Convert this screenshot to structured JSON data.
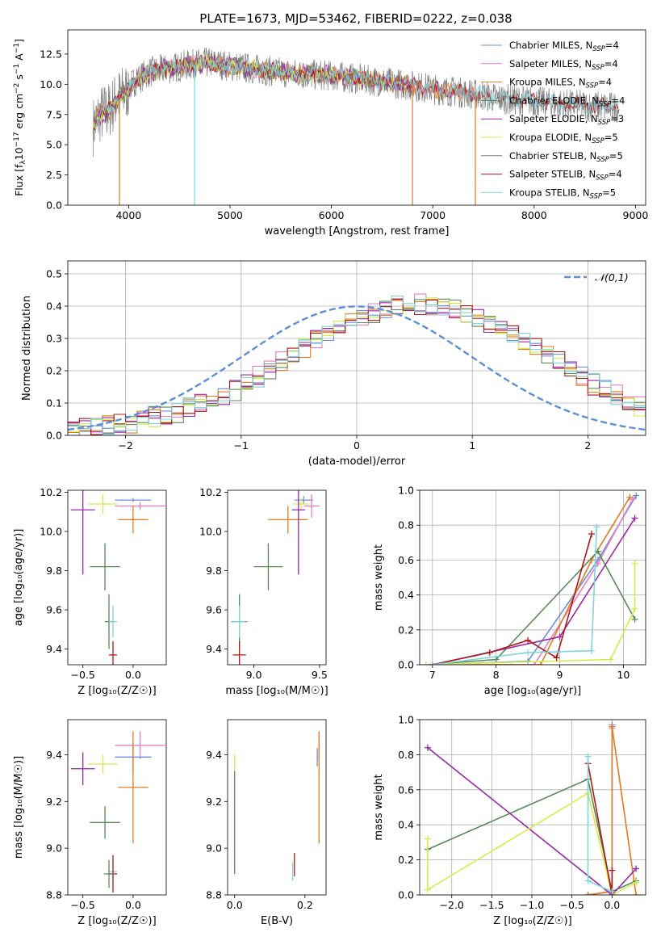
{
  "figure_title": "PLATE=1673, MJD=53462, FIBERID=0222, z=0.038",
  "colors": {
    "Chabrier MILES": "#6a8fd8",
    "Salpeter MILES": "#e67fc4",
    "Kroupa MILES": "#e07b1f",
    "Chabrier ELODIE": "#5a8a5a",
    "Salpeter ELODIE": "#9a27a8",
    "Kroupa ELODIE": "#d4ec4a",
    "Chabrier STELIB": "#808080",
    "Salpeter STELIB": "#b01818",
    "Kroupa STELIB": "#7fd4dc",
    "normal": "#5e8fd6"
  },
  "chart_data": [
    {
      "type": "line",
      "title": "PLATE=1673, MJD=53462, FIBERID=0222, z=0.038",
      "xlabel": "wavelength [Angstrom, rest frame]",
      "ylabel_parts": [
        "Flux [f",
        "λ",
        "10",
        "−17",
        " erg cm",
        "−2",
        " s",
        "−1",
        " A",
        "−1",
        "]"
      ],
      "xlim": [
        3400,
        9100
      ],
      "ylim": [
        0,
        14.5
      ],
      "xticks": [
        4000,
        5000,
        6000,
        7000,
        8000,
        9000
      ],
      "yticks": [
        0.0,
        2.5,
        5.0,
        7.5,
        10.0,
        12.5
      ],
      "grid": false,
      "legend_position": "top-right",
      "legend": [
        {
          "name": "Chabrier MILES",
          "nssp": "4"
        },
        {
          "name": "Salpeter MILES",
          "nssp": "4"
        },
        {
          "name": "Kroupa MILES",
          "nssp": "4"
        },
        {
          "name": "Chabrier ELODIE",
          "nssp": "4"
        },
        {
          "name": "Salpeter ELODIE",
          "nssp": "3"
        },
        {
          "name": "Kroupa ELODIE",
          "nssp": "5"
        },
        {
          "name": "Chabrier STELIB",
          "nssp": "5"
        },
        {
          "name": "Salpeter STELIB",
          "nssp": "4"
        },
        {
          "name": "Kroupa STELIB",
          "nssp": "5"
        }
      ],
      "continuum": [
        [
          3650,
          6.5
        ],
        [
          3720,
          7.5
        ],
        [
          3800,
          7.8
        ],
        [
          3900,
          8.9
        ],
        [
          3990,
          9.5
        ],
        [
          4050,
          10.2
        ],
        [
          4200,
          11.0
        ],
        [
          4400,
          11.3
        ],
        [
          4600,
          11.6
        ],
        [
          4800,
          11.8
        ],
        [
          5000,
          11.5
        ],
        [
          5200,
          11.3
        ],
        [
          5400,
          11.1
        ],
        [
          5600,
          10.9
        ],
        [
          5800,
          10.8
        ],
        [
          6000,
          10.7
        ],
        [
          6200,
          10.5
        ],
        [
          6400,
          10.3
        ],
        [
          6600,
          10.1
        ],
        [
          6800,
          9.9
        ],
        [
          7000,
          9.6
        ],
        [
          7200,
          9.4
        ],
        [
          7400,
          9.2
        ],
        [
          7600,
          8.9
        ],
        [
          7800,
          8.7
        ],
        [
          8000,
          8.6
        ],
        [
          8200,
          8.4
        ],
        [
          8400,
          8.3
        ],
        [
          8600,
          8.2
        ],
        [
          8800,
          8.1
        ]
      ],
      "model_end": {
        "MILES": 7420,
        "ELODIE": 6800,
        "STELIB": 8840
      },
      "spikes": [
        {
          "x": 3910,
          "ymin": 0,
          "series": "Kroupa MILES"
        },
        {
          "x": 4650,
          "ymin": 0,
          "series": "Kroupa STELIB"
        },
        {
          "x": 6800,
          "ymin": 0,
          "series": "Kroupa MILES"
        },
        {
          "x": 7420,
          "ymin": 0,
          "series": "Kroupa MILES"
        }
      ]
    },
    {
      "type": "histogram",
      "xlabel": "(data-model)/error",
      "ylabel": "Normed distribution",
      "xlim": [
        -2.5,
        2.5
      ],
      "ylim": [
        0,
        0.54
      ],
      "xticks": [
        -2,
        -1,
        0,
        1,
        2
      ],
      "yticks": [
        0.0,
        0.1,
        0.2,
        0.3,
        0.4,
        0.5
      ],
      "grid": true,
      "legend_position": "top-right",
      "legend_label": "𝒩(0,1)",
      "bin_width": 0.1,
      "bin_start": -2.5,
      "series_order": [
        "Chabrier MILES",
        "Salpeter MILES",
        "Kroupa MILES",
        "Chabrier ELODIE",
        "Salpeter ELODIE",
        "Kroupa ELODIE",
        "Salpeter STELIB",
        "Kroupa STELIB"
      ],
      "base_values": [
        0.018,
        0.02,
        0.025,
        0.03,
        0.034,
        0.04,
        0.046,
        0.052,
        0.06,
        0.07,
        0.082,
        0.096,
        0.11,
        0.126,
        0.144,
        0.164,
        0.185,
        0.206,
        0.228,
        0.25,
        0.272,
        0.294,
        0.315,
        0.335,
        0.352,
        0.367,
        0.379,
        0.39,
        0.398,
        0.402,
        0.41,
        0.404,
        0.398,
        0.39,
        0.379,
        0.365,
        0.35,
        0.333,
        0.313,
        0.292,
        0.27,
        0.248,
        0.226,
        0.204,
        0.182,
        0.162,
        0.142,
        0.124,
        0.106,
        0.091,
        0.078,
        0.066,
        0.056,
        0.048,
        0.041,
        0.036,
        0.032,
        0.03,
        0.028,
        0.028
      ],
      "offsets": [
        0.012,
        -0.015,
        0.008,
        0.02,
        -0.01,
        0.004,
        -0.018,
        0.015
      ]
    },
    {
      "type": "errorbar",
      "xlabel": "Z [log₁₀(Z/Z☉)]",
      "ylabel": "age  [log₁₀(age/yr)]",
      "xlim": [
        -0.65,
        0.33
      ],
      "ylim": [
        9.32,
        10.21
      ],
      "xticks": [
        -0.5,
        0.0
      ],
      "yticks": [
        9.4,
        9.6,
        9.8,
        10.0,
        10.2
      ],
      "grid": false,
      "points": [
        {
          "series": "Chabrier MILES",
          "x": 0.0,
          "y": 10.16,
          "xerr": 0.18,
          "yerr": 0.01
        },
        {
          "series": "Salpeter MILES",
          "x": 0.07,
          "y": 10.13,
          "xerr": 0.25,
          "yerr": 0.02
        },
        {
          "series": "Kroupa MILES",
          "x": 0.0,
          "y": 10.06,
          "xerr": 0.15,
          "yerr": 0.07
        },
        {
          "series": "Kroupa ELODIE",
          "x": -0.3,
          "y": 10.14,
          "xerr": 0.15,
          "yerr": 0.05
        },
        {
          "series": "Salpeter ELODIE",
          "x": -0.5,
          "y": 10.11,
          "xerr": 0.12,
          "yerr": 0.33
        },
        {
          "series": "Chabrier ELODIE",
          "x": -0.28,
          "y": 9.82,
          "xerr": 0.15,
          "yerr": 0.12
        },
        {
          "series": "Chabrier ELODIE",
          "x": -0.24,
          "y": 9.54,
          "xerr": 0.04,
          "yerr": 0.14
        },
        {
          "series": "Kroupa STELIB",
          "x": -0.2,
          "y": 9.54,
          "xerr": 0.04,
          "yerr": 0.08
        },
        {
          "series": "Salpeter STELIB",
          "x": -0.2,
          "y": 9.37,
          "xerr": 0.04,
          "yerr": 0.07
        }
      ]
    },
    {
      "type": "errorbar",
      "xlabel": "mass [log₁₀(M/M☉)]",
      "ylabel": "",
      "xlim": [
        8.8,
        9.55
      ],
      "ylim": [
        9.32,
        10.21
      ],
      "xticks": [
        9.0,
        9.5
      ],
      "yticks": [
        9.4,
        9.6,
        9.8,
        10.0,
        10.2
      ],
      "grid": false,
      "points": [
        {
          "series": "Chabrier MILES",
          "x": 9.38,
          "y": 10.16,
          "xerr": 0.07,
          "yerr": 0.02
        },
        {
          "series": "Salpeter MILES",
          "x": 9.44,
          "y": 10.13,
          "xerr": 0.06,
          "yerr": 0.06
        },
        {
          "series": "Kroupa MILES",
          "x": 9.26,
          "y": 10.06,
          "xerr": 0.15,
          "yerr": 0.07
        },
        {
          "series": "Kroupa ELODIE",
          "x": 9.36,
          "y": 10.14,
          "xerr": 0.06,
          "yerr": 0.03
        },
        {
          "series": "Salpeter ELODIE",
          "x": 9.34,
          "y": 10.11,
          "xerr": 0.05,
          "yerr": 0.33
        },
        {
          "series": "Chabrier ELODIE",
          "x": 9.11,
          "y": 9.82,
          "xerr": 0.11,
          "yerr": 0.12
        },
        {
          "series": "Chabrier ELODIE",
          "x": 8.89,
          "y": 9.54,
          "xerr": 0.06,
          "yerr": 0.14
        },
        {
          "series": "Kroupa STELIB",
          "x": 8.89,
          "y": 9.54,
          "xerr": 0.05,
          "yerr": 0.08
        },
        {
          "series": "Salpeter STELIB",
          "x": 8.89,
          "y": 9.37,
          "xerr": 0.05,
          "yerr": 0.07
        }
      ]
    },
    {
      "type": "line",
      "xlabel": "age  [log₁₀(age/yr)]",
      "ylabel": "mass weight",
      "xlim": [
        6.8,
        10.35
      ],
      "ylim": [
        0,
        1.0
      ],
      "xticks": [
        7,
        8,
        9,
        10
      ],
      "yticks": [
        0.0,
        0.2,
        0.4,
        0.6,
        0.8,
        1.0
      ],
      "grid": true,
      "series": [
        {
          "name": "Chabrier MILES",
          "x": [
            7.0,
            8.5,
            9.6,
            10.2
          ],
          "y": [
            0.0,
            0.02,
            0.6,
            0.97
          ]
        },
        {
          "name": "Salpeter MILES",
          "x": [
            7.0,
            8.6,
            9.6,
            10.15
          ],
          "y": [
            0.0,
            0.0,
            0.58,
            0.95
          ]
        },
        {
          "name": "Kroupa MILES",
          "x": [
            7.0,
            8.7,
            9.5,
            10.1
          ],
          "y": [
            0.0,
            0.0,
            0.6,
            0.96
          ]
        },
        {
          "name": "Chabrier ELODIE",
          "x": [
            6.9,
            8.0,
            9.6,
            10.18
          ],
          "y": [
            0.0,
            0.03,
            0.65,
            0.26
          ]
        },
        {
          "name": "Salpeter ELODIE",
          "x": [
            7.0,
            9.0,
            10.18
          ],
          "y": [
            0.0,
            0.16,
            0.84
          ]
        },
        {
          "name": "Kroupa ELODIE",
          "x": [
            6.9,
            9.8,
            10.18,
            10.18
          ],
          "y": [
            0.0,
            0.03,
            0.32,
            0.58
          ]
        },
        {
          "name": "Salpeter STELIB",
          "x": [
            7.0,
            7.9,
            8.5,
            8.95,
            9.5
          ],
          "y": [
            0.0,
            0.07,
            0.14,
            0.04,
            0.75
          ]
        },
        {
          "name": "Kroupa STELIB",
          "x": [
            7.0,
            8.5,
            9.5,
            9.58
          ],
          "y": [
            0.0,
            0.07,
            0.08,
            0.79
          ]
        }
      ]
    },
    {
      "type": "errorbar",
      "xlabel": "Z [log₁₀(Z/Z☉)]",
      "ylabel": "mass [log₁₀(M/M☉)]",
      "xlim": [
        -0.65,
        0.33
      ],
      "ylim": [
        8.8,
        9.55
      ],
      "xticks": [
        -0.5,
        0.0
      ],
      "yticks": [
        8.8,
        9.0,
        9.2,
        9.4
      ],
      "grid": false,
      "points": [
        {
          "series": "Salpeter MILES",
          "x": 0.07,
          "y": 9.44,
          "xerr": 0.25,
          "yerr": 0.06
        },
        {
          "series": "Chabrier MILES",
          "x": 0.0,
          "y": 9.39,
          "xerr": 0.18,
          "yerr": 0.06
        },
        {
          "series": "Kroupa ELODIE",
          "x": -0.3,
          "y": 9.36,
          "xerr": 0.15,
          "yerr": 0.04
        },
        {
          "series": "Salpeter ELODIE",
          "x": -0.5,
          "y": 9.34,
          "xerr": 0.12,
          "yerr": 0.07
        },
        {
          "series": "Kroupa MILES",
          "x": 0.0,
          "y": 9.26,
          "xerr": 0.15,
          "yerr": 0.24
        },
        {
          "series": "Chabrier ELODIE",
          "x": -0.28,
          "y": 9.11,
          "xerr": 0.15,
          "yerr": 0.07
        },
        {
          "series": "Kroupa STELIB",
          "x": -0.2,
          "y": 8.9,
          "xerr": 0.04,
          "yerr": 0.04
        },
        {
          "series": "Salpeter STELIB",
          "x": -0.2,
          "y": 8.89,
          "xerr": 0.04,
          "yerr": 0.08
        },
        {
          "series": "Chabrier ELODIE",
          "x": -0.24,
          "y": 8.89,
          "xerr": 0.05,
          "yerr": 0.06
        }
      ]
    },
    {
      "type": "errorbar",
      "xlabel": "E(B-V)",
      "ylabel": "",
      "xlim": [
        -0.02,
        0.26
      ],
      "ylim": [
        8.8,
        9.55
      ],
      "xticks": [
        0.0,
        0.2
      ],
      "yticks": [
        8.8,
        9.0,
        9.2,
        9.4
      ],
      "grid": false,
      "points": [
        {
          "series": "Salpeter MILES",
          "x": 0.24,
          "y": 9.44,
          "xerr": 0.0,
          "yerr": 0.06
        },
        {
          "series": "Chabrier MILES",
          "x": 0.235,
          "y": 9.39,
          "xerr": 0.0,
          "yerr": 0.04
        },
        {
          "series": "Kroupa MILES",
          "x": 0.24,
          "y": 9.26,
          "xerr": 0.0,
          "yerr": 0.24
        },
        {
          "series": "Kroupa ELODIE",
          "x": 0.0,
          "y": 9.36,
          "xerr": 0.0,
          "yerr": 0.04
        },
        {
          "series": "Chabrier ELODIE",
          "x": 0.0,
          "y": 9.11,
          "xerr": 0.0,
          "yerr": 0.22
        },
        {
          "series": "Kroupa STELIB",
          "x": 0.165,
          "y": 8.9,
          "xerr": 0.0,
          "yerr": 0.04
        },
        {
          "series": "Salpeter STELIB",
          "x": 0.17,
          "y": 8.93,
          "xerr": 0.0,
          "yerr": 0.05
        }
      ]
    },
    {
      "type": "line",
      "xlabel": "Z [log₁₀(Z/Z☉)]",
      "ylabel": "mass weight",
      "xlim": [
        -2.4,
        0.42
      ],
      "ylim": [
        0,
        1.0
      ],
      "xticks": [
        -2.0,
        -1.5,
        -1.0,
        -0.5,
        0.0
      ],
      "yticks": [
        0.0,
        0.2,
        0.4,
        0.6,
        0.8,
        1.0
      ],
      "grid": true,
      "series": [
        {
          "name": "Chabrier MILES",
          "x": [
            -0.3,
            0.0,
            0.0
          ],
          "y": [
            0.0,
            0.02,
            0.97
          ]
        },
        {
          "name": "Salpeter MILES",
          "x": [
            -0.3,
            0.0,
            0.0
          ],
          "y": [
            0.0,
            0.02,
            0.95
          ]
        },
        {
          "name": "Kroupa MILES",
          "x": [
            -0.3,
            0.0,
            0.0,
            0.3
          ],
          "y": [
            0.0,
            0.02,
            0.96,
            0.0
          ]
        },
        {
          "name": "Chabrier ELODIE",
          "x": [
            -2.3,
            -0.3,
            0.0,
            0.3
          ],
          "y": [
            0.26,
            0.66,
            0.02,
            0.08
          ]
        },
        {
          "name": "Salpeter ELODIE",
          "x": [
            -2.3,
            0.0,
            0.3
          ],
          "y": [
            0.84,
            0.0,
            0.15
          ]
        },
        {
          "name": "Kroupa ELODIE",
          "x": [
            -2.3,
            -2.3,
            -0.3,
            0.0,
            0.3
          ],
          "y": [
            0.32,
            0.03,
            0.58,
            0.0,
            0.07
          ]
        },
        {
          "name": "Salpeter STELIB",
          "x": [
            -0.3,
            0.0,
            0.0
          ],
          "y": [
            0.75,
            0.0,
            0.14
          ]
        },
        {
          "name": "Kroupa STELIB",
          "x": [
            -0.3,
            -0.3,
            0.0
          ],
          "y": [
            0.79,
            0.08,
            0.02
          ]
        }
      ]
    }
  ]
}
